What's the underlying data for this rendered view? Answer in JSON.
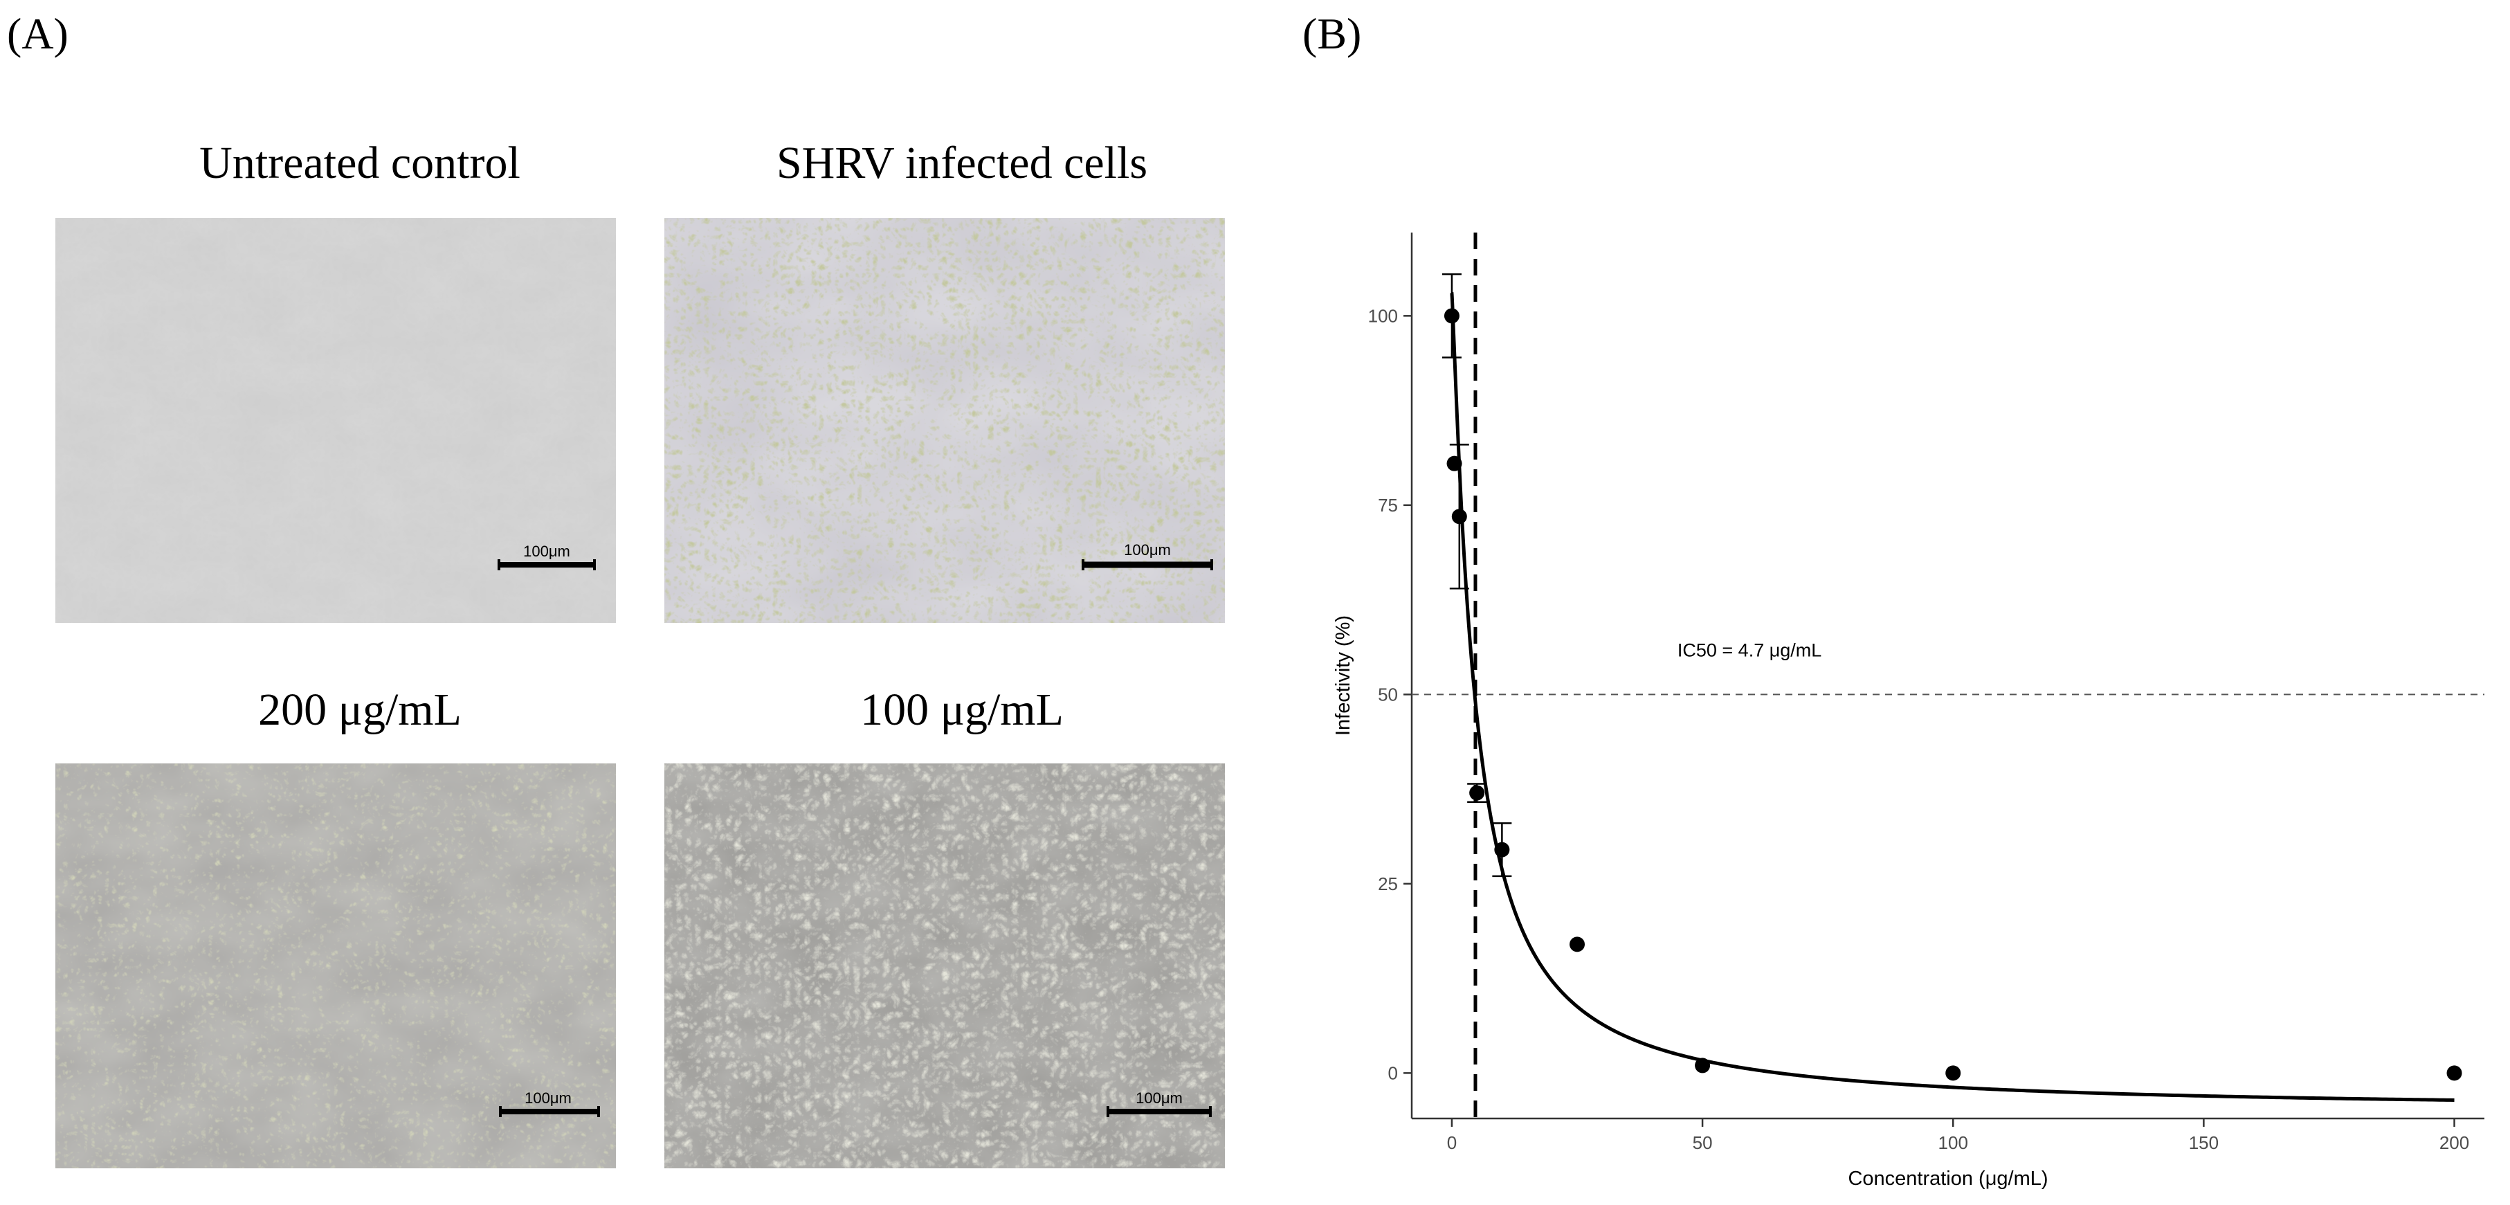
{
  "panels": {
    "a_label": "(A)",
    "b_label": "(B)"
  },
  "micrographs": [
    {
      "title": "Untreated control",
      "scale_label": "100μm",
      "style": "confluent"
    },
    {
      "title": "SHRV infected cells",
      "scale_label": "100μm",
      "style": "infected"
    },
    {
      "title": "200 μg/mL",
      "scale_label": "100μm",
      "style": "treated-light"
    },
    {
      "title": "100 μg/mL",
      "scale_label": "100μm",
      "style": "treated-dense"
    }
  ],
  "chart_data": {
    "type": "scatter",
    "xlabel": "Concentration (μg/mL)",
    "ylabel": "Infectivity (%)",
    "xlim": [
      -8,
      206
    ],
    "ylim": [
      -6,
      111
    ],
    "x_ticks": [
      0,
      50,
      100,
      150,
      200
    ],
    "y_ticks": [
      0,
      25,
      50,
      75,
      100
    ],
    "points": [
      {
        "x": 0,
        "y": 100,
        "err": 5.5
      },
      {
        "x": 0.5,
        "y": 80.5,
        "err": 0
      },
      {
        "x": 1.5,
        "y": 73.5,
        "err": 9.5
      },
      {
        "x": 5,
        "y": 37,
        "err": 1.2
      },
      {
        "x": 10,
        "y": 29.5,
        "err": 3.5
      },
      {
        "x": 25,
        "y": 17,
        "err": 0
      },
      {
        "x": 50,
        "y": 1,
        "err": 0
      },
      {
        "x": 100,
        "y": 0,
        "err": 0
      },
      {
        "x": 200,
        "y": 0,
        "err": 0
      }
    ],
    "fit_curve": {
      "model": "hill",
      "top": 103,
      "bottom": -5,
      "ic50": 4.7,
      "hill": 1.15
    },
    "ic50_value": 4.7,
    "ic50_line_x": 4.7,
    "half_line_y": 50,
    "annotation": "IC50 = 4.7 μg/mL",
    "annotation_x": 45,
    "annotation_y": 55,
    "grid": false,
    "colors": {
      "ink": "#000000",
      "axis": "#333333",
      "tick_text": "#4d4d4d",
      "dash": "#555555"
    }
  }
}
